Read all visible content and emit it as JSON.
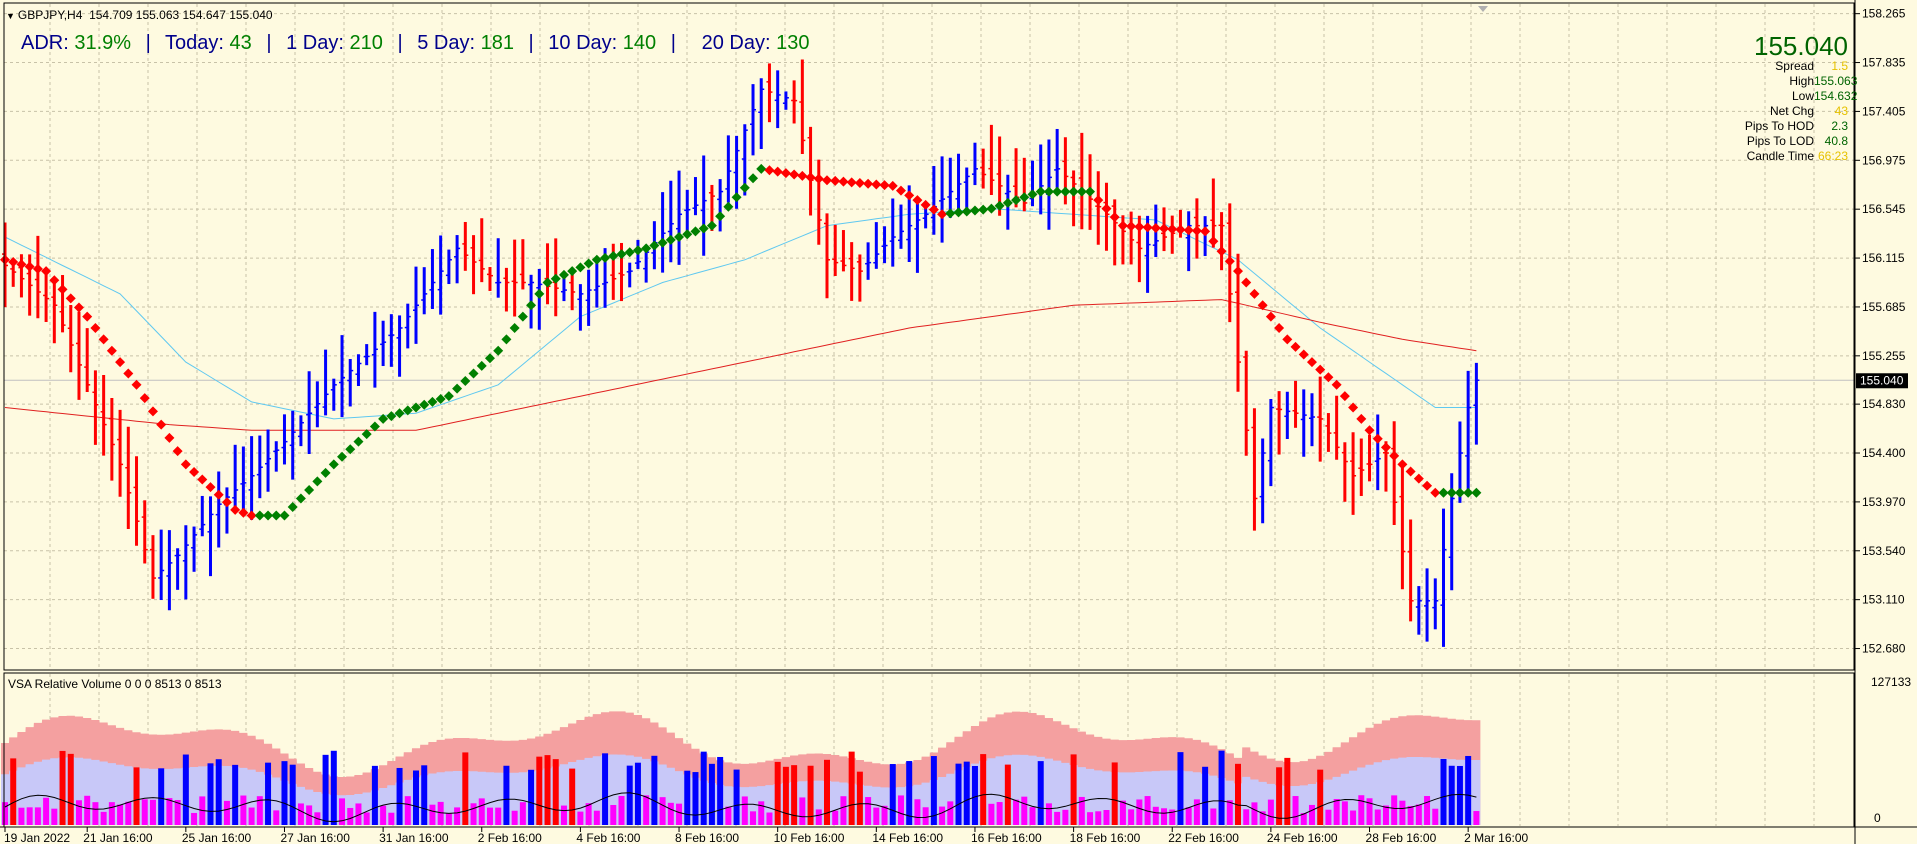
{
  "header": {
    "symbol": "GBPJPY,H4",
    "ohlc": "154.709 155.063 154.647 155.040"
  },
  "adr": {
    "adr_label": "ADR:",
    "adr_value": "31.9%",
    "today_label": "Today:",
    "today_value": "43",
    "day1_label": "1 Day:",
    "day1_value": "210",
    "day5_label": "5 Day:",
    "day5_value": "181",
    "day10_label": "10 Day:",
    "day10_value": "140",
    "day20_label": "20 Day:",
    "day20_value": "130",
    "separator": "|"
  },
  "info_panel": {
    "price": "155.040",
    "rows": [
      {
        "label": "Spread",
        "value": "1.5",
        "color": "yellow"
      },
      {
        "label": "High",
        "value": "155.063",
        "color": "green"
      },
      {
        "label": "Low",
        "value": "154.632",
        "color": "green"
      },
      {
        "label": "Net Chg",
        "value": "43",
        "color": "yellow"
      },
      {
        "label": "Pips To HOD",
        "value": "2.3",
        "color": "green"
      },
      {
        "label": "Pips To LOD",
        "value": "40.8",
        "color": "green"
      },
      {
        "label": "Candle Time",
        "value": "66:23",
        "color": "yellow"
      }
    ]
  },
  "vsa": {
    "label": "VSA Relative Volume 0 0 0 8513 0 8513",
    "max_label": "127133",
    "min_label": "0"
  },
  "colors": {
    "background": "#fefae0",
    "grid": "#c8c2a8",
    "bull_bar": "#0000ff",
    "bear_bar": "#ff0000",
    "ma_fast": "#5fc8f0",
    "ma_slow": "#e02020",
    "trend_up": "#008000",
    "trend_down": "#ff0000",
    "vsa_band_outer": "#f4a0a0",
    "vsa_band_inner": "#c8c8f8",
    "vsa_magenta": "#ff00ff",
    "price_label_bg": "#000000"
  },
  "chart_data": {
    "type": "ohlc",
    "ylim": [
      152.5,
      158.35
    ],
    "y_ticks": [
      "158.265",
      "157.835",
      "157.405",
      "156.975",
      "156.545",
      "156.115",
      "155.685",
      "155.255",
      "154.830",
      "154.400",
      "153.970",
      "153.540",
      "153.110",
      "152.680"
    ],
    "current_price": "155.040",
    "x_tick_labels": [
      "19 Jan 2022",
      "21 Jan 16:00",
      "25 Jan 16:00",
      "27 Jan 16:00",
      "31 Jan 16:00",
      "2 Feb 16:00",
      "4 Feb 16:00",
      "8 Feb 16:00",
      "10 Feb 16:00",
      "14 Feb 16:00",
      "16 Feb 16:00",
      "18 Feb 16:00",
      "22 Feb 16:00",
      "24 Feb 16:00",
      "28 Feb 16:00",
      "2 Mar 16:00"
    ],
    "bar_count": 180,
    "series": [
      {
        "name": "Close",
        "anchors": [
          [
            0,
            156.05
          ],
          [
            6,
            155.7
          ],
          [
            10,
            155.0
          ],
          [
            14,
            154.3
          ],
          [
            18,
            153.3
          ],
          [
            21,
            153.5
          ],
          [
            26,
            153.95
          ],
          [
            30,
            154.2
          ],
          [
            34,
            154.5
          ],
          [
            40,
            155.0
          ],
          [
            48,
            155.5
          ],
          [
            55,
            156.2
          ],
          [
            60,
            155.9
          ],
          [
            64,
            155.9
          ],
          [
            70,
            155.8
          ],
          [
            76,
            156.0
          ],
          [
            82,
            156.5
          ],
          [
            87,
            156.7
          ],
          [
            92,
            157.6
          ],
          [
            96,
            157.5
          ],
          [
            100,
            156.1
          ],
          [
            104,
            156.0
          ],
          [
            108,
            156.3
          ],
          [
            112,
            156.5
          ],
          [
            118,
            156.9
          ],
          [
            124,
            156.6
          ],
          [
            128,
            156.9
          ],
          [
            134,
            156.5
          ],
          [
            138,
            156.2
          ],
          [
            144,
            156.4
          ],
          [
            148,
            156.4
          ],
          [
            150,
            155.2
          ],
          [
            152,
            154.0
          ],
          [
            154,
            154.8
          ],
          [
            160,
            154.7
          ],
          [
            164,
            154.2
          ],
          [
            168,
            154.4
          ],
          [
            171,
            153.1
          ],
          [
            174,
            153.1
          ],
          [
            176,
            154.0
          ],
          [
            178,
            154.8
          ],
          [
            179,
            155.04
          ]
        ]
      },
      {
        "name": "MA fast",
        "anchors": [
          [
            0,
            156.3
          ],
          [
            14,
            155.8
          ],
          [
            22,
            155.2
          ],
          [
            30,
            154.85
          ],
          [
            40,
            154.7
          ],
          [
            50,
            154.75
          ],
          [
            60,
            155.0
          ],
          [
            70,
            155.6
          ],
          [
            80,
            155.9
          ],
          [
            90,
            156.1
          ],
          [
            100,
            156.4
          ],
          [
            110,
            156.5
          ],
          [
            120,
            156.55
          ],
          [
            130,
            156.5
          ],
          [
            140,
            156.45
          ],
          [
            150,
            156.1
          ],
          [
            160,
            155.5
          ],
          [
            170,
            155.0
          ],
          [
            174,
            154.8
          ],
          [
            179,
            154.8
          ]
        ]
      },
      {
        "name": "MA slow",
        "anchors": [
          [
            0,
            154.8
          ],
          [
            20,
            154.65
          ],
          [
            30,
            154.6
          ],
          [
            50,
            154.6
          ],
          [
            70,
            154.9
          ],
          [
            90,
            155.2
          ],
          [
            110,
            155.5
          ],
          [
            130,
            155.7
          ],
          [
            148,
            155.75
          ],
          [
            160,
            155.55
          ],
          [
            170,
            155.4
          ],
          [
            179,
            155.3
          ]
        ]
      },
      {
        "name": "Trend",
        "anchors": [
          [
            0,
            156.1
          ],
          [
            5,
            156.0
          ],
          [
            10,
            155.6
          ],
          [
            16,
            155.0
          ],
          [
            22,
            154.3
          ],
          [
            28,
            153.9
          ],
          [
            30,
            153.85
          ],
          [
            34,
            153.85
          ],
          [
            40,
            154.3
          ],
          [
            46,
            154.7
          ],
          [
            54,
            154.9
          ],
          [
            60,
            155.3
          ],
          [
            66,
            155.9
          ],
          [
            72,
            156.1
          ],
          [
            78,
            156.2
          ],
          [
            86,
            156.4
          ],
          [
            92,
            156.9
          ],
          [
            100,
            156.8
          ],
          [
            108,
            156.75
          ],
          [
            114,
            156.5
          ],
          [
            120,
            156.55
          ],
          [
            126,
            156.7
          ],
          [
            132,
            156.7
          ],
          [
            136,
            156.4
          ],
          [
            146,
            156.35
          ],
          [
            150,
            156.0
          ],
          [
            156,
            155.4
          ],
          [
            162,
            155.0
          ],
          [
            166,
            154.6
          ],
          [
            170,
            154.3
          ],
          [
            174,
            154.05
          ],
          [
            179,
            154.05
          ]
        ]
      }
    ]
  }
}
